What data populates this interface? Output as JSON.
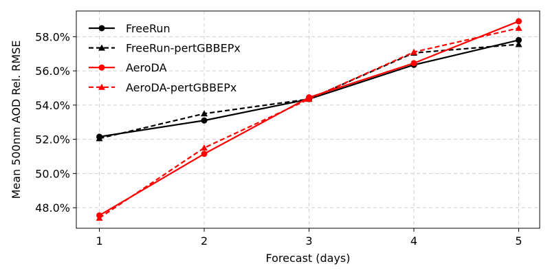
{
  "chart_data": {
    "type": "line",
    "xlabel": "Forecast (days)",
    "ylabel": "Mean 500nm AOD Rel. RMSE",
    "x": [
      1,
      2,
      3,
      4,
      5
    ],
    "x_ticks": [
      "1",
      "2",
      "3",
      "4",
      "5"
    ],
    "xlim": [
      0.78,
      5.2
    ],
    "ylim": [
      46.8,
      59.5
    ],
    "y_ticks": [
      48.0,
      50.0,
      52.0,
      54.0,
      56.0,
      58.0
    ],
    "y_tick_labels": [
      "48.0%",
      "50.0%",
      "52.0%",
      "54.0%",
      "56.0%",
      "58.0%"
    ],
    "grid": true,
    "legend_position": "top-left",
    "series": [
      {
        "name": "FreeRun",
        "values": [
          52.15,
          53.1,
          54.35,
          56.35,
          57.8
        ],
        "color": "#000000",
        "dashed": false,
        "marker": "circle"
      },
      {
        "name": "FreeRun-pertGBBEPx",
        "values": [
          52.05,
          53.5,
          54.35,
          57.05,
          57.55
        ],
        "color": "#000000",
        "dashed": true,
        "marker": "triangle"
      },
      {
        "name": "AeroDA",
        "values": [
          47.55,
          51.15,
          54.45,
          56.45,
          58.9
        ],
        "color": "#ff0000",
        "dashed": false,
        "marker": "circle"
      },
      {
        "name": "AeroDA-pertGBBEPx",
        "values": [
          47.4,
          51.5,
          54.35,
          57.1,
          58.5
        ],
        "color": "#ff0000",
        "dashed": true,
        "marker": "triangle"
      }
    ]
  }
}
